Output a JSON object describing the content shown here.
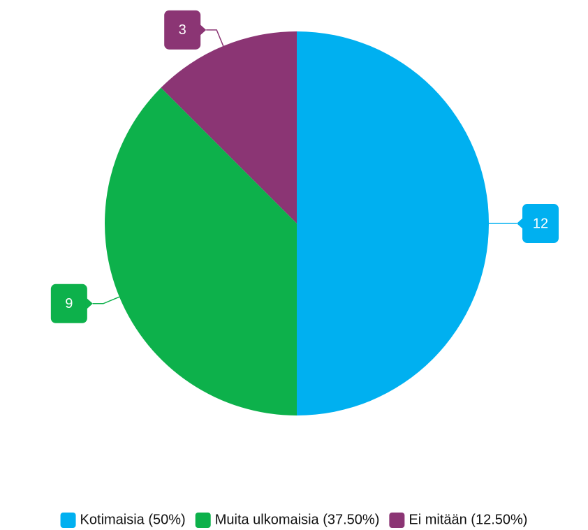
{
  "chart_data": {
    "type": "pie",
    "categories": [
      "Kotimaisia (50%)",
      "Muita ulkomaisia (37.50%)",
      "Ei mitään (12.50%)"
    ],
    "values": [
      12,
      9,
      3
    ],
    "colors": [
      "#00b0f0",
      "#0db14b",
      "#8b3574"
    ],
    "legend": "bottom"
  }
}
